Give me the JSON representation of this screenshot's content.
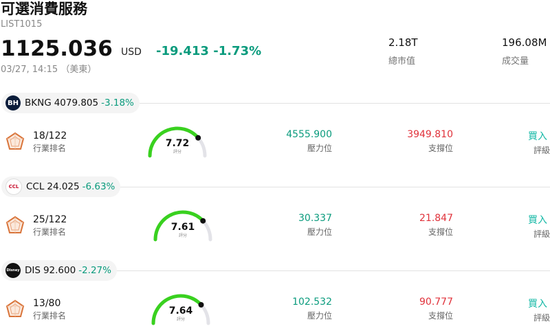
{
  "header": {
    "title": "可選消費服務",
    "code": "LIST1015",
    "price": "1125.036",
    "currency": "USD",
    "change": "-19.413",
    "change_pct": "-1.73%",
    "timestamp": "03/27, 14:15 （美東）",
    "market_cap_value": "2.18T",
    "market_cap_label": "總市值",
    "volume_value": "196.08M",
    "volume_label": "成交量"
  },
  "colors": {
    "up": "#0a9b7d",
    "down": "#e0313a",
    "gauge": "#39d11f",
    "rating": "#14b8a6"
  },
  "stocks": [
    {
      "logo": "BH",
      "symbol": "BKNG",
      "price": "4079.805",
      "change_pct": "-3.18%",
      "rank": "18/122",
      "rank_label": "行業排名",
      "score": "7.72",
      "score_label": "評分",
      "resistance": "4555.900",
      "resistance_label": "壓力位",
      "support": "3949.810",
      "support_label": "支撐位",
      "rating": "買入",
      "rating_label": "評級"
    },
    {
      "logo": "CCL",
      "symbol": "CCL",
      "price": "24.025",
      "change_pct": "-6.63%",
      "rank": "25/122",
      "rank_label": "行業排名",
      "score": "7.61",
      "score_label": "評分",
      "resistance": "30.337",
      "resistance_label": "壓力位",
      "support": "21.847",
      "support_label": "支撐位",
      "rating": "買入",
      "rating_label": "評級"
    },
    {
      "logo": "Disney",
      "symbol": "DIS",
      "price": "92.600",
      "change_pct": "-2.27%",
      "rank": "13/80",
      "rank_label": "行業排名",
      "score": "7.64",
      "score_label": "評分",
      "resistance": "102.532",
      "resistance_label": "壓力位",
      "support": "90.777",
      "support_label": "支撐位",
      "rating": "買入",
      "rating_label": "評級"
    }
  ]
}
